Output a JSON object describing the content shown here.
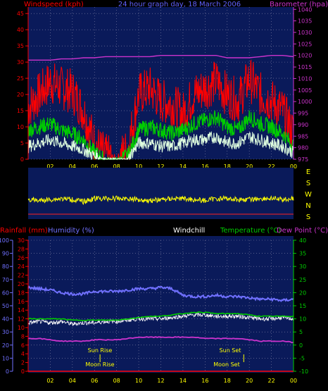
{
  "header": {
    "windspeed_label": "Windspeed (kph)",
    "graph_title": "24 hour graph day, 18 March 2006",
    "barometer_label": "Barometer (hpa)"
  },
  "header2": {
    "rainfall_label": "Rainfall (mm)",
    "humidity_label": "Humidity (%)",
    "windchill_label": "Windchill",
    "temperature_label": "Temperature (°C)",
    "dewpoint_label": "Dew Point (°C)"
  },
  "annotations": {
    "sun_rise": "Sun Rise",
    "moon_rise": "Moon Rise",
    "sun_set": "Sun Set",
    "moon_set": "Moon Set"
  },
  "compass": [
    "E",
    "S",
    "W",
    "N",
    "S"
  ],
  "colors": {
    "plot_bg": "#0a1a5a",
    "wind_max": "#ff0000",
    "wind_avg": "#00cc00",
    "wind_min": "#e0ffe0",
    "barometer": "#cc33cc",
    "direction": "#ffff00",
    "humidity": "#7070ff",
    "temperature": "#00cc00",
    "dewpoint": "#cc33cc",
    "windchill": "#ffffff",
    "rainfall": "#ff0000",
    "axis_left": "#ff0000",
    "axis_right_top": "#cc33cc",
    "axis_right_bottom": "#00cc00",
    "xtick": "#ffff00"
  },
  "chart_data": [
    {
      "type": "line",
      "title": "24 hour graph day, 18 March 2006",
      "ylabel": "Windspeed (kph)",
      "y2label": "Barometer (hpa)",
      "x_ticks": [
        "02",
        "04",
        "06",
        "08",
        "10",
        "12",
        "14",
        "16",
        "18",
        "20",
        "22",
        "00"
      ],
      "y_ticks": [
        0,
        5,
        10,
        15,
        20,
        25,
        30,
        35,
        40,
        45
      ],
      "ylim": [
        0,
        47
      ],
      "y2_ticks": [
        975,
        980,
        985,
        990,
        995,
        1000,
        1005,
        1010,
        1015,
        1020,
        1025,
        1030,
        1035,
        1040
      ],
      "y2lim": [
        975,
        1041
      ],
      "grid": true,
      "hours": [
        0,
        1,
        2,
        3,
        4,
        5,
        6,
        7,
        8,
        9,
        10,
        11,
        12,
        13,
        14,
        15,
        16,
        17,
        18,
        19,
        20,
        21,
        22,
        23,
        24
      ],
      "series": [
        {
          "name": "",
          "values": [
            16,
            20,
            24,
            22,
            21,
            15,
            5,
            1,
            0,
            3,
            20,
            22,
            18,
            17,
            14,
            20,
            22,
            24,
            20,
            18,
            25,
            20,
            18,
            15,
            8
          ]
        },
        {
          "name": "",
          "values": [
            9,
            10,
            11,
            9,
            8,
            6,
            2,
            0,
            0,
            1,
            9,
            10,
            9,
            8,
            9,
            11,
            12,
            13,
            10,
            9,
            13,
            11,
            10,
            8,
            4
          ]
        },
        {
          "name": "",
          "values": [
            4,
            5,
            6,
            5,
            4,
            3,
            1,
            0,
            0,
            0,
            5,
            5,
            4,
            4,
            5,
            6,
            6,
            7,
            5,
            5,
            7,
            6,
            5,
            4,
            2
          ]
        },
        {
          "name": "",
          "values": [
            1018,
            1018,
            1018,
            1018.5,
            1018.5,
            1019,
            1019,
            1019.5,
            1019.5,
            1019.5,
            1019.5,
            1019.5,
            1020,
            1020,
            1020,
            1020,
            1020,
            1020,
            1019,
            1019,
            1019,
            1019.5,
            1020,
            1020,
            1019.5
          ]
        }
      ]
    },
    {
      "type": "line",
      "ylabel": "",
      "compass_labels": [
        "E",
        "S",
        "W",
        "N",
        "S"
      ],
      "hours": [
        0,
        1,
        2,
        3,
        4,
        5,
        6,
        7,
        8,
        9,
        10,
        11,
        12,
        13,
        14,
        15,
        16,
        17,
        18,
        19,
        20,
        21,
        22,
        23,
        24
      ],
      "series": [
        {
          "name": "",
          "values": [
            3.1,
            3.2,
            3.1,
            3.0,
            3.1,
            3.3,
            3.0,
            3.0,
            3.0,
            3.0,
            3.1,
            3.2,
            3.1,
            3.0,
            3.0,
            3.1,
            3.2,
            3.0,
            3.0,
            3.1,
            3.1,
            3.0,
            3.0,
            3.1,
            3.0
          ]
        }
      ]
    },
    {
      "type": "line",
      "ylabel": "Humidity (%)",
      "y2label": "Temperature (°C)",
      "x_ticks": [
        "02",
        "04",
        "06",
        "08",
        "10",
        "12",
        "14",
        "16",
        "18",
        "20",
        "22",
        "00"
      ],
      "humidity_ticks": [
        0,
        10,
        20,
        30,
        40,
        50,
        60,
        70,
        80,
        90,
        100
      ],
      "humidity_lim": [
        0,
        100
      ],
      "rain_ticks": [
        0,
        2,
        4,
        6,
        8,
        10,
        12,
        14,
        16,
        18,
        20,
        22,
        24,
        26,
        28,
        30
      ],
      "rain_lim": [
        0,
        30
      ],
      "temp_ticks": [
        -10,
        -5,
        0,
        5,
        10,
        15,
        20,
        25,
        30,
        35,
        40
      ],
      "temp_lim": [
        -10,
        40
      ],
      "grid": true,
      "hours": [
        0,
        1,
        2,
        3,
        4,
        5,
        6,
        7,
        8,
        9,
        10,
        11,
        12,
        13,
        14,
        15,
        16,
        17,
        18,
        19,
        20,
        21,
        22,
        23,
        24
      ],
      "series": [
        {
          "name": "",
          "values": [
            64,
            63,
            62,
            60,
            59,
            59,
            61,
            61,
            61,
            62,
            63,
            63,
            64,
            63,
            58,
            57,
            57,
            58,
            57,
            57,
            56,
            55,
            55,
            54,
            55
          ]
        },
        {
          "name": "",
          "values": [
            10,
            10,
            10,
            10,
            9.5,
            9.5,
            9.5,
            9.5,
            9.5,
            10,
            10.5,
            11,
            11,
            11.5,
            12,
            12.5,
            12.5,
            12,
            12,
            12,
            11.5,
            11,
            11,
            11,
            11
          ]
        },
        {
          "name": "",
          "values": [
            2.5,
            2.5,
            2.0,
            1.5,
            1.5,
            1.5,
            2.0,
            2.0,
            2.0,
            2.5,
            3.0,
            3.0,
            3.0,
            3.0,
            3.0,
            3.0,
            2.5,
            2.5,
            2.5,
            2.5,
            2.0,
            1.5,
            1.5,
            1.5,
            1.0
          ]
        },
        {
          "name": "",
          "values": [
            8.5,
            9,
            8.5,
            9,
            8,
            8.5,
            8.5,
            9,
            9,
            9.5,
            10,
            10,
            10,
            10.5,
            11,
            11.5,
            11.5,
            11,
            11,
            11,
            10.5,
            10,
            10,
            10.5,
            10
          ]
        },
        {
          "name": "",
          "values": [
            0,
            0,
            0,
            0,
            0,
            0,
            0,
            0,
            0,
            0,
            0,
            0,
            0,
            0,
            0,
            0,
            0,
            0,
            0,
            0,
            0,
            0,
            0,
            0,
            0
          ]
        }
      ],
      "sun_rise_hour": 6.5,
      "sun_set_hour": 19.5
    }
  ]
}
